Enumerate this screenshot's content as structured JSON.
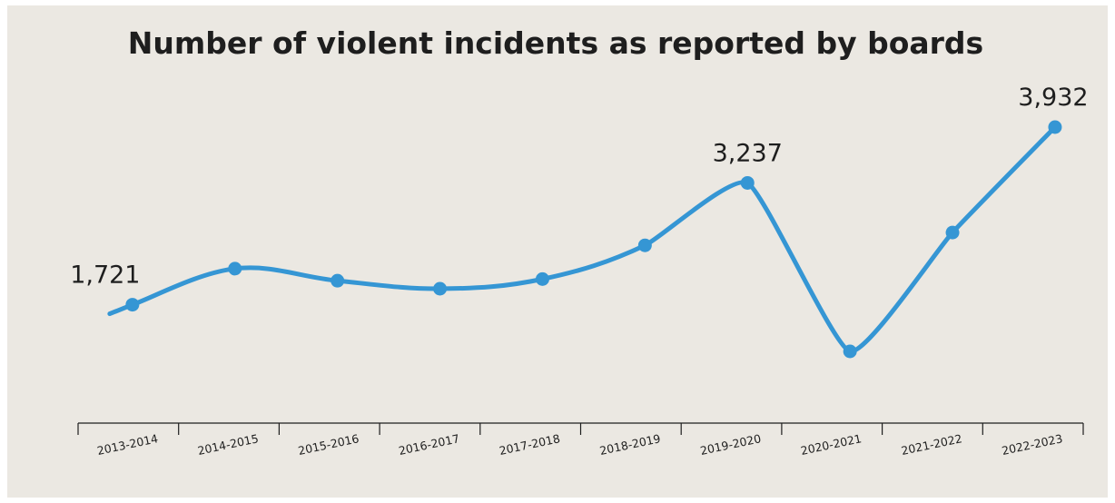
{
  "chart_data": {
    "type": "line",
    "title": "Number of violent incidents as reported by boards",
    "categories": [
      "2013-2014",
      "2014-2015",
      "2015-2016",
      "2016-2017",
      "2017-2018",
      "2018-2019",
      "2019-2020",
      "2020-2021",
      "2021-2022",
      "2022-2023"
    ],
    "series": [
      {
        "values": [
          1721,
          2170,
          2020,
          1920,
          2040,
          2460,
          3237,
          1140,
          2620,
          3932
        ],
        "color": "#3596d4"
      }
    ],
    "data_labels": [
      {
        "index": 0,
        "text": "1,721"
      },
      {
        "index": 6,
        "text": "3,237"
      },
      {
        "index": 9,
        "text": "3,932"
      }
    ],
    "ylim": [
      0,
      4500
    ],
    "grid": false,
    "legend": "none",
    "background_color": "#ebe8e2"
  }
}
